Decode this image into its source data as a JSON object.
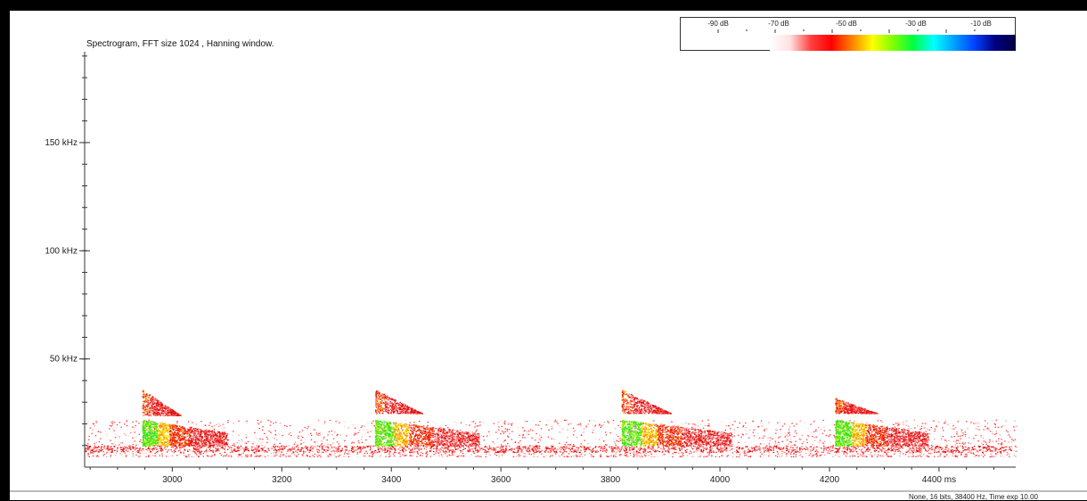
{
  "window": {
    "status": "None, 16 bits, 38400 Hz, Time exp 10.00"
  },
  "chart_data": {
    "type": "heatmap",
    "title": "Spectrogram, FFT size 1024 , Hanning window.",
    "x_unit": "ms",
    "y_unit": "kHz",
    "xlim": [
      2840,
      4540
    ],
    "ylim": [
      0,
      192
    ],
    "x_ticks": [
      {
        "value": 3000,
        "label": "3000"
      },
      {
        "value": 3200,
        "label": "3200"
      },
      {
        "value": 3400,
        "label": "3400"
      },
      {
        "value": 3600,
        "label": "3600"
      },
      {
        "value": 3800,
        "label": "3800"
      },
      {
        "value": 4000,
        "label": "4000"
      },
      {
        "value": 4200,
        "label": "4200"
      },
      {
        "value": 4400,
        "label": "4400 ms"
      }
    ],
    "y_ticks": [
      {
        "value": 50,
        "label": "50 kHz"
      },
      {
        "value": 100,
        "label": "100 kHz"
      },
      {
        "value": 150,
        "label": "150 kHz"
      }
    ],
    "y_minor_step": 10,
    "color_scale": {
      "labels": [
        "-90 dB",
        "-70 dB",
        "-50 dB",
        "-30 dB",
        "-10 dB"
      ],
      "stops": [
        "#ffffff",
        "#ffe0e0",
        "#ff4040",
        "#ff0000",
        "#ff8000",
        "#ffff00",
        "#80ff00",
        "#00ff40",
        "#00ffff",
        "#00a0ff",
        "#0040ff",
        "#000080",
        "#000040"
      ]
    },
    "calls": [
      {
        "start_ms": 2945,
        "upper_band_khz": [
          36,
          24
        ],
        "lower_band_khz": [
          22,
          10
        ],
        "end_ms": 3100
      },
      {
        "start_ms": 3370,
        "upper_band_khz": [
          36,
          25
        ],
        "lower_band_khz": [
          22,
          10
        ],
        "end_ms": 3560
      },
      {
        "start_ms": 3820,
        "upper_band_khz": [
          36,
          25
        ],
        "lower_band_khz": [
          22,
          10
        ],
        "end_ms": 4020
      },
      {
        "start_ms": 4210,
        "upper_band_khz": [
          32,
          25
        ],
        "lower_band_khz": [
          22,
          10
        ],
        "end_ms": 4380
      }
    ],
    "noise_band_khz": [
      5,
      22
    ]
  }
}
